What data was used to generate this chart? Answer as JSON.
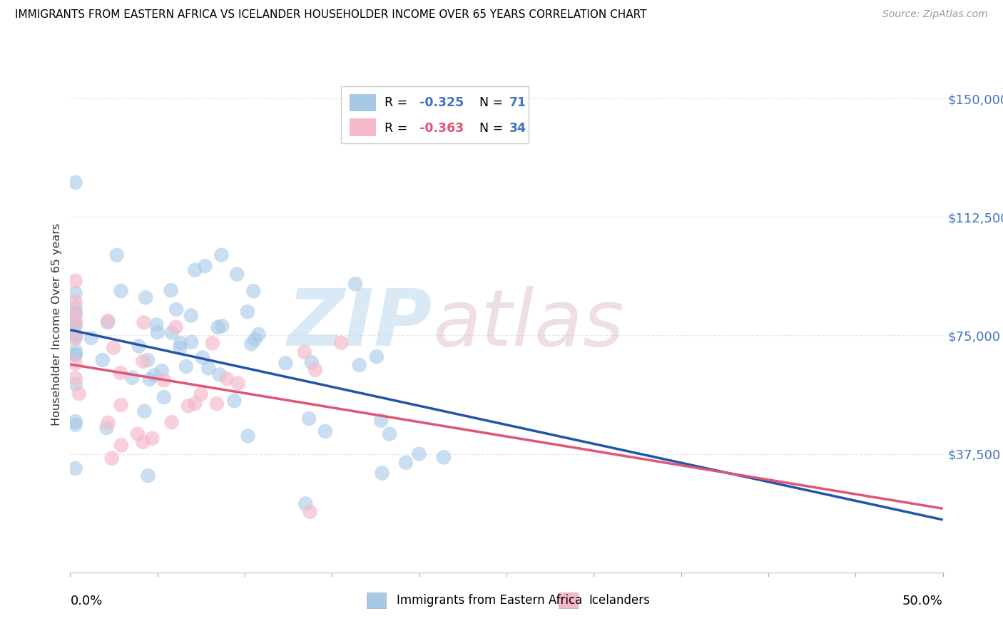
{
  "title": "IMMIGRANTS FROM EASTERN AFRICA VS ICELANDER HOUSEHOLDER INCOME OVER 65 YEARS CORRELATION CHART",
  "source": "Source: ZipAtlas.com",
  "ylabel": "Householder Income Over 65 years",
  "y_ticks": [
    0,
    37500,
    75000,
    112500,
    150000
  ],
  "y_tick_labels": [
    "",
    "$37,500",
    "$75,000",
    "$112,500",
    "$150,000"
  ],
  "xlim": [
    0.0,
    0.505
  ],
  "ylim": [
    0,
    157000
  ],
  "legend1_r": "-0.325",
  "legend1_n": "71",
  "legend2_r": "-0.363",
  "legend2_n": "34",
  "blue_color": "#a8c8e8",
  "pink_color": "#f4b8c8",
  "blue_line_color": "#2255aa",
  "pink_line_color": "#e05575",
  "blue_dashed_color": "#aaccee",
  "grid_color": "#e8e8e8",
  "tick_label_color": "#4472c4",
  "title_fontsize": 11,
  "R_blue": -0.325,
  "R_pink": -0.363,
  "N_blue": 71,
  "N_pink": 34
}
